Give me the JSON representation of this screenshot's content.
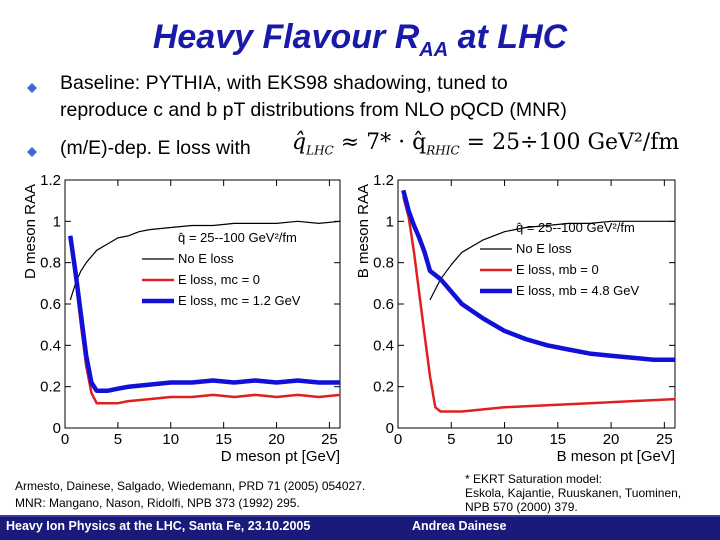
{
  "slide": {
    "title_main": "Heavy Flavour R",
    "title_sub": "AA",
    "title_tail": " at LHC",
    "bullet1_line1": "Baseline: PYTHIA, with EKS98 shadowing, tuned to",
    "bullet1_line2": "reproduce c and b pT distributions from NLO pQCD (MNR)",
    "bullet2": "(m/E)-dep. E loss with",
    "formula_q1": "q̂",
    "formula_lhc": "LHC",
    "formula_mid": "≈ 7* · q̂",
    "formula_rhic": "RHIC",
    "formula_tail": "= 25÷100 GeV²/fm",
    "ref_left_1": "Armesto, Dainese, Salgado, Wiedemann, PRD 71 (2005) 054027.",
    "ref_left_2": "MNR: Mangano, Nason, Ridolfi, NPB 373 (1992) 295.",
    "ref_right_1": "* EKRT Saturation model:",
    "ref_right_2": "Eskola, Kajantie, Ruuskanen, Tuominen,",
    "ref_right_3": "NPB 570 (2000) 379.",
    "footer_left": "Heavy Ion Physics at the LHC, Santa Fe, 23.10.2005",
    "footer_right": "Andrea Dainese",
    "colors": {
      "title": "#1a1aa8",
      "footer_bg": "#1a1a7a",
      "blue_series": "#1010d8",
      "red_series": "#e02020",
      "black_series": "#000000"
    }
  },
  "chart_data": [
    {
      "type": "line",
      "xlabel": "D meson pt [GeV]",
      "ylabel": "D meson RAA",
      "xlim": [
        0,
        26
      ],
      "ylim": [
        0,
        1.2
      ],
      "xticks": [
        0,
        5,
        10,
        15,
        20,
        25
      ],
      "yticks": [
        0,
        0.2,
        0.4,
        0.6,
        0.8,
        1,
        1.2
      ],
      "legend": "center-right",
      "legend_title": "q̂ = 25--100 GeV²/fm",
      "series": [
        {
          "name": "No E loss",
          "color": "#000000",
          "x": [
            0.5,
            1,
            1.5,
            2,
            3,
            4,
            5,
            6,
            7,
            8,
            10,
            12,
            14,
            16,
            18,
            20,
            22,
            24,
            26
          ],
          "y": [
            0.62,
            0.7,
            0.76,
            0.8,
            0.86,
            0.89,
            0.92,
            0.93,
            0.95,
            0.96,
            0.97,
            0.98,
            0.98,
            0.99,
            0.99,
            0.99,
            1.0,
            0.99,
            1.0
          ]
        },
        {
          "name": "E loss, mc = 0",
          "color": "#e02020",
          "x": [
            0.5,
            1,
            1.5,
            2,
            2.5,
            3,
            4,
            5,
            6,
            8,
            10,
            12,
            14,
            16,
            18,
            20,
            22,
            24,
            26
          ],
          "y": [
            0.93,
            0.72,
            0.5,
            0.3,
            0.17,
            0.12,
            0.12,
            0.12,
            0.13,
            0.14,
            0.15,
            0.15,
            0.16,
            0.15,
            0.16,
            0.15,
            0.16,
            0.15,
            0.16
          ]
        },
        {
          "name": "E loss, mc = 1.2 GeV",
          "color": "#1010d8",
          "x": [
            0.5,
            1,
            1.5,
            2,
            2.5,
            3,
            4,
            5,
            6,
            8,
            10,
            12,
            14,
            16,
            18,
            20,
            22,
            24,
            26
          ],
          "y": [
            0.93,
            0.75,
            0.55,
            0.35,
            0.22,
            0.18,
            0.18,
            0.19,
            0.2,
            0.21,
            0.22,
            0.22,
            0.23,
            0.22,
            0.23,
            0.22,
            0.23,
            0.22,
            0.22
          ]
        }
      ]
    },
    {
      "type": "line",
      "xlabel": "B meson pt [GeV]",
      "ylabel": "B meson RAA",
      "xlim": [
        0,
        26
      ],
      "ylim": [
        0,
        1.2
      ],
      "xticks": [
        0,
        5,
        10,
        15,
        20,
        25
      ],
      "yticks": [
        0,
        0.2,
        0.4,
        0.6,
        0.8,
        1,
        1.2
      ],
      "legend": "top-right",
      "legend_title": "q̂ = 25--100 GeV²/fm",
      "series": [
        {
          "name": "No E loss",
          "color": "#000000",
          "x": [
            3,
            4,
            5,
            6,
            8,
            10,
            12,
            14,
            16,
            18,
            20,
            22,
            24,
            26
          ],
          "y": [
            0.62,
            0.72,
            0.79,
            0.85,
            0.91,
            0.95,
            0.97,
            0.98,
            0.99,
            0.99,
            1.0,
            1.0,
            1.0,
            1.0
          ]
        },
        {
          "name": "E loss, mb = 0",
          "color": "#e02020",
          "x": [
            0.5,
            1,
            1.5,
            2,
            2.5,
            3,
            3.5,
            4,
            6,
            8,
            10,
            14,
            18,
            22,
            26
          ],
          "y": [
            1.12,
            1.02,
            0.85,
            0.65,
            0.45,
            0.25,
            0.1,
            0.08,
            0.08,
            0.09,
            0.1,
            0.11,
            0.12,
            0.13,
            0.14
          ]
        },
        {
          "name": "E loss, mb = 4.8 GeV",
          "color": "#1010d8",
          "x": [
            0.5,
            1,
            1.5,
            2,
            2.5,
            3,
            4,
            5,
            6,
            8,
            10,
            12,
            14,
            16,
            18,
            20,
            22,
            24,
            26
          ],
          "y": [
            1.15,
            1.05,
            0.98,
            0.92,
            0.85,
            0.76,
            0.72,
            0.66,
            0.6,
            0.53,
            0.47,
            0.43,
            0.4,
            0.38,
            0.36,
            0.35,
            0.34,
            0.33,
            0.33
          ]
        }
      ]
    }
  ]
}
